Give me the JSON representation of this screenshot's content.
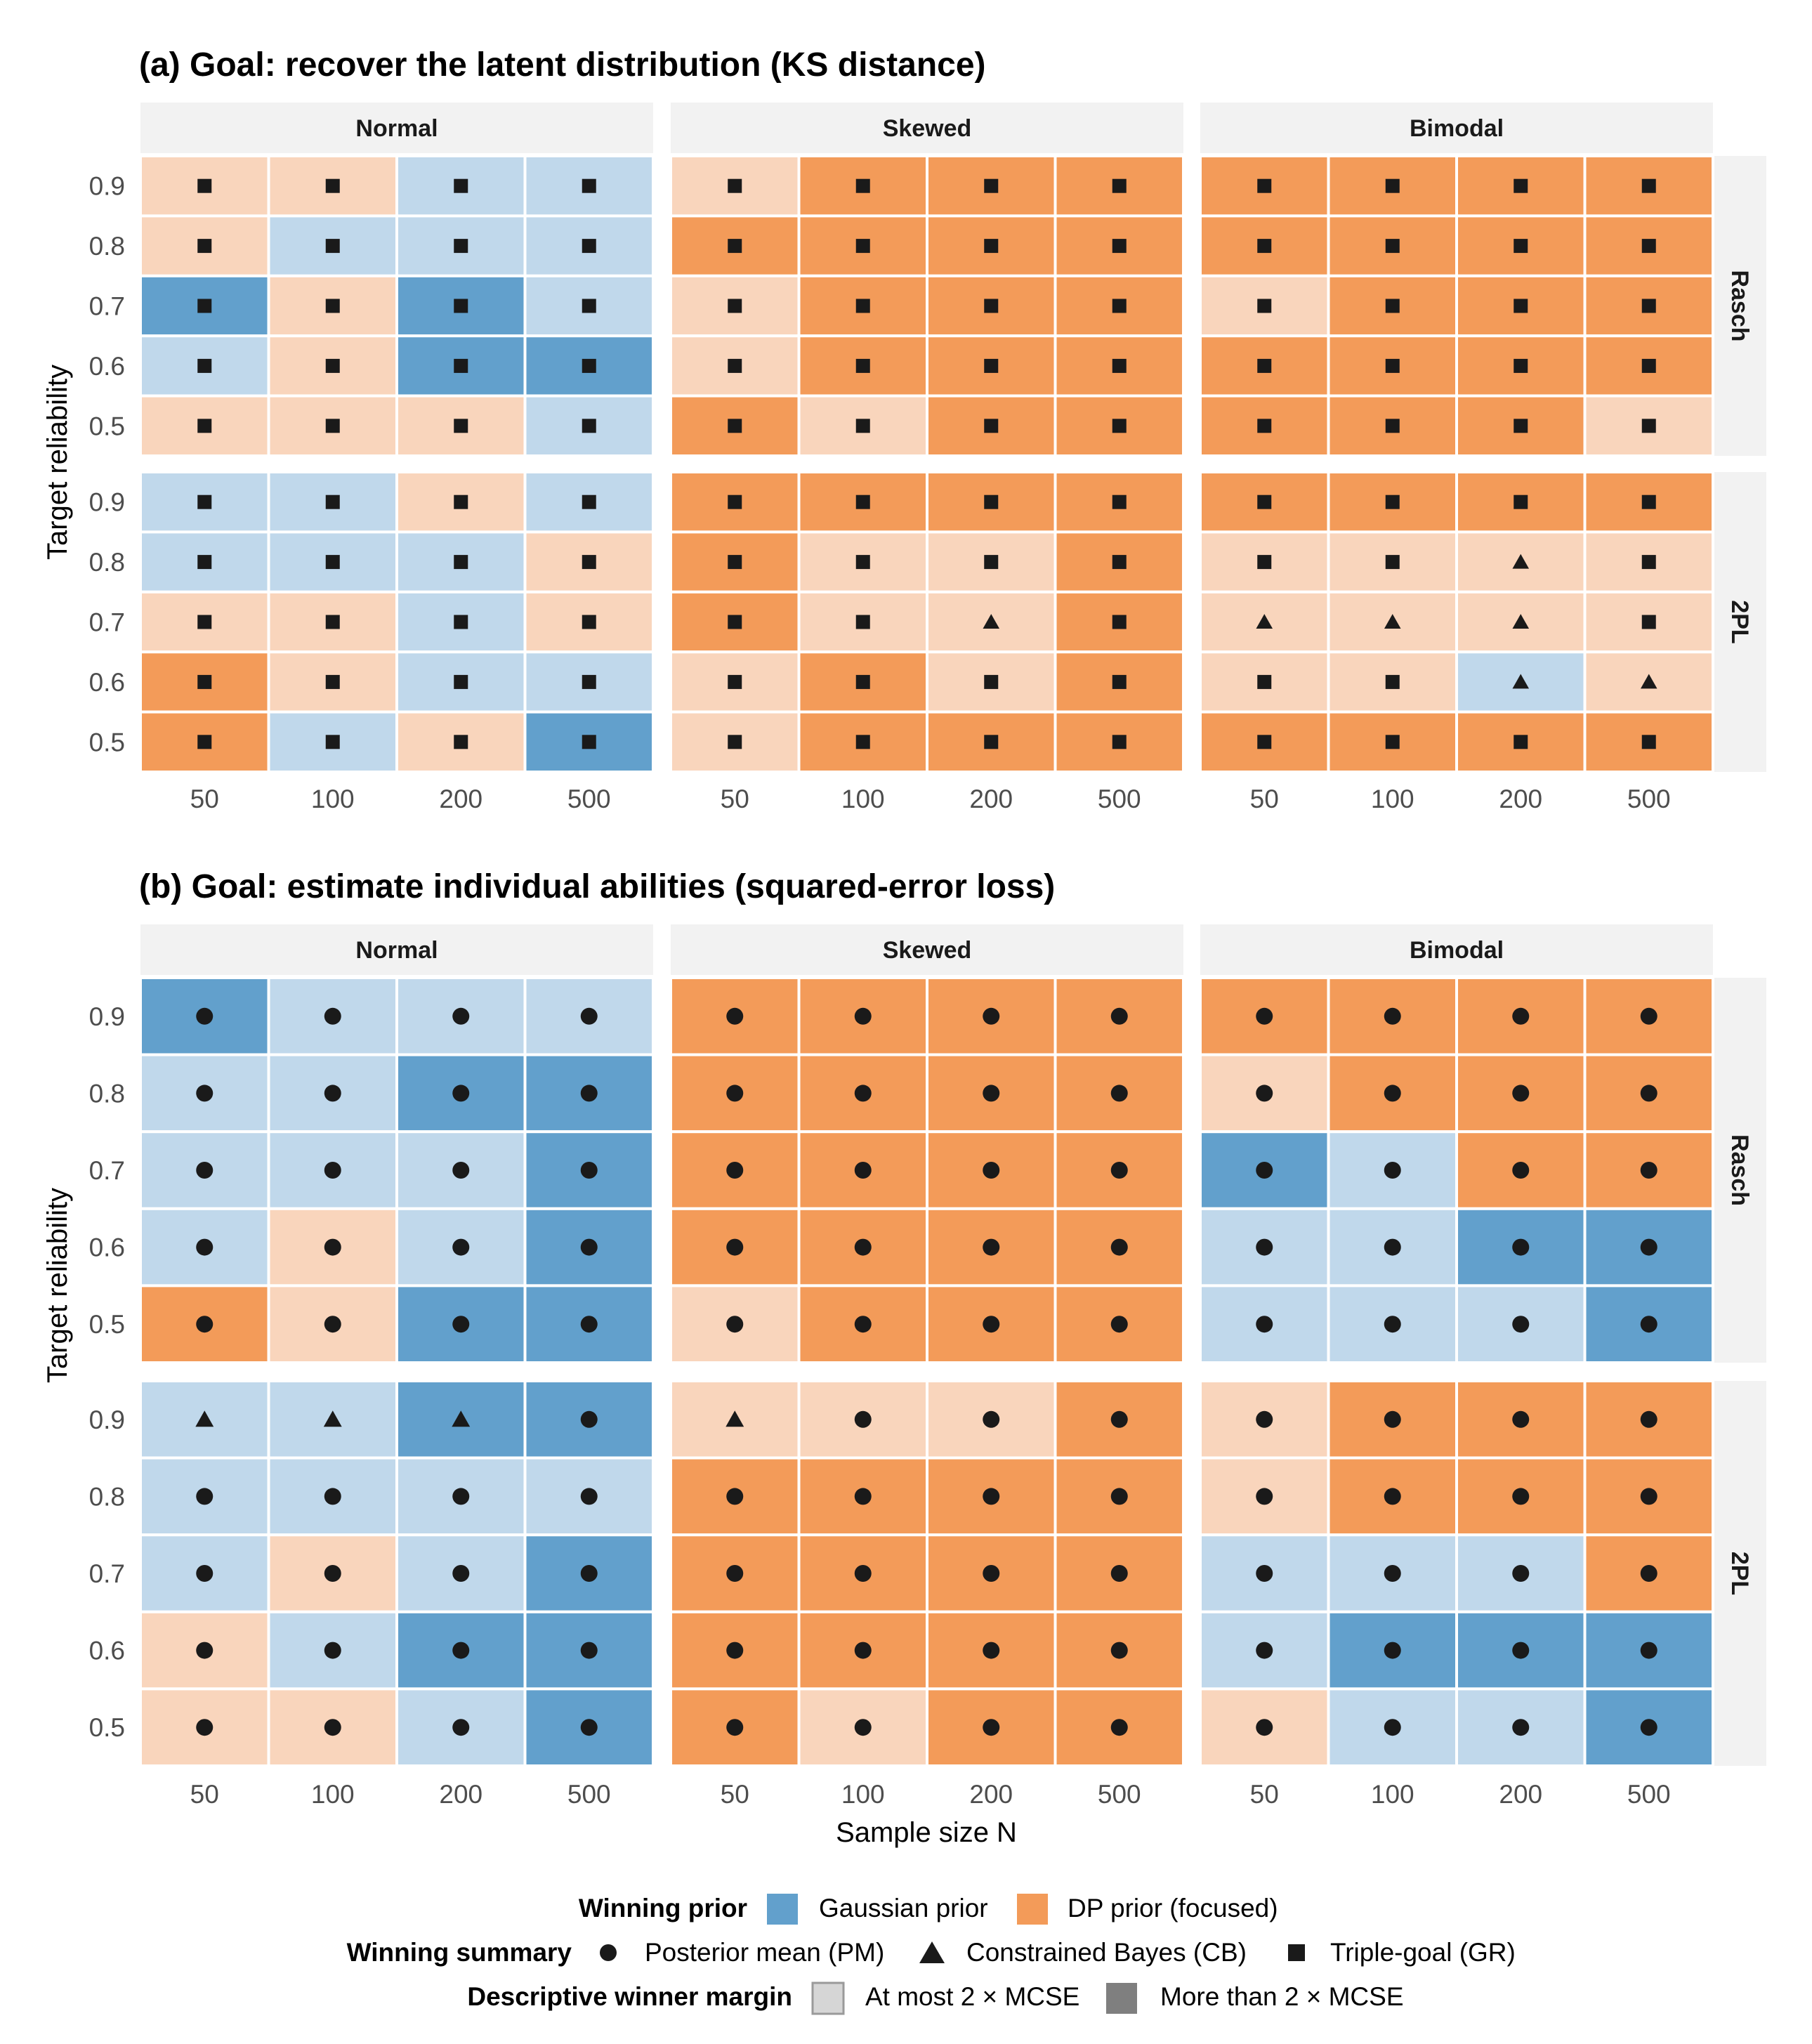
{
  "chart_data": [
    {
      "type": "heatmap",
      "title": "(a) Goal: recover the latent distribution (KS distance)",
      "xlabel": "",
      "ylabel": "Target reliability",
      "x_ticks": [
        "50",
        "100",
        "200",
        "500"
      ],
      "y_ticks": [
        "0.9",
        "0.8",
        "0.7",
        "0.6",
        "0.5"
      ],
      "columns": [
        "Normal",
        "Skewed",
        "Bimodal"
      ],
      "rows": [
        "Rasch",
        "2PL"
      ],
      "cell_encoding": "cells[row][column][reliability 0.9..0.5][N 50..500]: G = Gaussian prior, D = DP prior (focused); lowercase = at most 2 × MCSE, uppercase = more than 2 × MCSE. Marks: M = Posterior mean (PM), C = Constrained Bayes (CB), T = Triple-goal (GR)",
      "cells": [
        [
          [
            [
              "d",
              "T"
            ],
            [
              "d",
              "T"
            ],
            [
              "g",
              "T"
            ],
            [
              "g",
              "T"
            ]
          ],
          [
            [
              "d",
              "T"
            ],
            [
              "g",
              "T"
            ],
            [
              "g",
              "T"
            ],
            [
              "g",
              "T"
            ]
          ],
          [
            [
              "G",
              "T"
            ],
            [
              "d",
              "T"
            ],
            [
              "G",
              "T"
            ],
            [
              "g",
              "T"
            ]
          ],
          [
            [
              "g",
              "T"
            ],
            [
              "d",
              "T"
            ],
            [
              "G",
              "T"
            ],
            [
              "G",
              "T"
            ]
          ],
          [
            [
              "d",
              "T"
            ],
            [
              "d",
              "T"
            ],
            [
              "d",
              "T"
            ],
            [
              "g",
              "T"
            ]
          ]
        ],
        [
          [
            [
              "d",
              "T"
            ],
            [
              "D",
              "T"
            ],
            [
              "D",
              "T"
            ],
            [
              "D",
              "T"
            ]
          ],
          [
            [
              "D",
              "T"
            ],
            [
              "D",
              "T"
            ],
            [
              "D",
              "T"
            ],
            [
              "D",
              "T"
            ]
          ],
          [
            [
              "d",
              "T"
            ],
            [
              "D",
              "T"
            ],
            [
              "D",
              "T"
            ],
            [
              "D",
              "T"
            ]
          ],
          [
            [
              "d",
              "T"
            ],
            [
              "D",
              "T"
            ],
            [
              "D",
              "T"
            ],
            [
              "D",
              "T"
            ]
          ],
          [
            [
              "D",
              "T"
            ],
            [
              "d",
              "T"
            ],
            [
              "D",
              "T"
            ],
            [
              "D",
              "T"
            ]
          ]
        ],
        [
          [
            [
              "D",
              "T"
            ],
            [
              "D",
              "T"
            ],
            [
              "D",
              "T"
            ],
            [
              "D",
              "T"
            ]
          ],
          [
            [
              "D",
              "T"
            ],
            [
              "D",
              "T"
            ],
            [
              "D",
              "T"
            ],
            [
              "D",
              "T"
            ]
          ],
          [
            [
              "d",
              "T"
            ],
            [
              "D",
              "T"
            ],
            [
              "D",
              "T"
            ],
            [
              "D",
              "T"
            ]
          ],
          [
            [
              "D",
              "T"
            ],
            [
              "D",
              "T"
            ],
            [
              "D",
              "T"
            ],
            [
              "D",
              "T"
            ]
          ],
          [
            [
              "D",
              "T"
            ],
            [
              "D",
              "T"
            ],
            [
              "D",
              "T"
            ],
            [
              "d",
              "T"
            ]
          ]
        ]
      ],
      "cells_2pl": [
        [
          [
            [
              "g",
              "T"
            ],
            [
              "g",
              "T"
            ],
            [
              "d",
              "T"
            ],
            [
              "g",
              "T"
            ]
          ],
          [
            [
              "g",
              "T"
            ],
            [
              "g",
              "T"
            ],
            [
              "g",
              "T"
            ],
            [
              "d",
              "T"
            ]
          ],
          [
            [
              "d",
              "T"
            ],
            [
              "d",
              "T"
            ],
            [
              "g",
              "T"
            ],
            [
              "d",
              "T"
            ]
          ],
          [
            [
              "D",
              "T"
            ],
            [
              "d",
              "T"
            ],
            [
              "g",
              "T"
            ],
            [
              "g",
              "T"
            ]
          ],
          [
            [
              "D",
              "T"
            ],
            [
              "g",
              "T"
            ],
            [
              "d",
              "T"
            ],
            [
              "G",
              "T"
            ]
          ]
        ],
        [
          [
            [
              "D",
              "T"
            ],
            [
              "D",
              "T"
            ],
            [
              "D",
              "T"
            ],
            [
              "D",
              "T"
            ]
          ],
          [
            [
              "D",
              "T"
            ],
            [
              "d",
              "T"
            ],
            [
              "d",
              "T"
            ],
            [
              "D",
              "T"
            ]
          ],
          [
            [
              "D",
              "T"
            ],
            [
              "d",
              "T"
            ],
            [
              "d",
              "C"
            ],
            [
              "D",
              "T"
            ]
          ],
          [
            [
              "d",
              "T"
            ],
            [
              "D",
              "T"
            ],
            [
              "d",
              "T"
            ],
            [
              "D",
              "T"
            ]
          ],
          [
            [
              "d",
              "T"
            ],
            [
              "D",
              "T"
            ],
            [
              "D",
              "T"
            ],
            [
              "D",
              "T"
            ]
          ]
        ],
        [
          [
            [
              "D",
              "T"
            ],
            [
              "D",
              "T"
            ],
            [
              "D",
              "T"
            ],
            [
              "D",
              "T"
            ]
          ],
          [
            [
              "d",
              "T"
            ],
            [
              "d",
              "T"
            ],
            [
              "d",
              "C"
            ],
            [
              "d",
              "T"
            ]
          ],
          [
            [
              "d",
              "C"
            ],
            [
              "d",
              "C"
            ],
            [
              "d",
              "C"
            ],
            [
              "d",
              "T"
            ]
          ],
          [
            [
              "d",
              "T"
            ],
            [
              "d",
              "T"
            ],
            [
              "g",
              "C"
            ],
            [
              "d",
              "C"
            ]
          ],
          [
            [
              "D",
              "T"
            ],
            [
              "D",
              "T"
            ],
            [
              "D",
              "T"
            ],
            [
              "D",
              "T"
            ]
          ]
        ]
      ]
    },
    {
      "type": "heatmap",
      "title": "(b) Goal: estimate individual abilities (squared-error loss)",
      "xlabel": "Sample size N",
      "ylabel": "Target reliability",
      "x_ticks": [
        "50",
        "100",
        "200",
        "500"
      ],
      "y_ticks": [
        "0.9",
        "0.8",
        "0.7",
        "0.6",
        "0.5"
      ],
      "columns": [
        "Normal",
        "Skewed",
        "Bimodal"
      ],
      "rows": [
        "Rasch",
        "2PL"
      ],
      "cells": [
        [
          [
            [
              "G",
              "M"
            ],
            [
              "g",
              "M"
            ],
            [
              "g",
              "M"
            ],
            [
              "g",
              "M"
            ]
          ],
          [
            [
              "g",
              "M"
            ],
            [
              "g",
              "M"
            ],
            [
              "G",
              "M"
            ],
            [
              "G",
              "M"
            ]
          ],
          [
            [
              "g",
              "M"
            ],
            [
              "g",
              "M"
            ],
            [
              "g",
              "M"
            ],
            [
              "G",
              "M"
            ]
          ],
          [
            [
              "g",
              "M"
            ],
            [
              "d",
              "M"
            ],
            [
              "g",
              "M"
            ],
            [
              "G",
              "M"
            ]
          ],
          [
            [
              "D",
              "M"
            ],
            [
              "d",
              "M"
            ],
            [
              "G",
              "M"
            ],
            [
              "G",
              "M"
            ]
          ]
        ],
        [
          [
            [
              "D",
              "M"
            ],
            [
              "D",
              "M"
            ],
            [
              "D",
              "M"
            ],
            [
              "D",
              "M"
            ]
          ],
          [
            [
              "D",
              "M"
            ],
            [
              "D",
              "M"
            ],
            [
              "D",
              "M"
            ],
            [
              "D",
              "M"
            ]
          ],
          [
            [
              "D",
              "M"
            ],
            [
              "D",
              "M"
            ],
            [
              "D",
              "M"
            ],
            [
              "D",
              "M"
            ]
          ],
          [
            [
              "D",
              "M"
            ],
            [
              "D",
              "M"
            ],
            [
              "D",
              "M"
            ],
            [
              "D",
              "M"
            ]
          ],
          [
            [
              "d",
              "M"
            ],
            [
              "D",
              "M"
            ],
            [
              "D",
              "M"
            ],
            [
              "D",
              "M"
            ]
          ]
        ],
        [
          [
            [
              "D",
              "M"
            ],
            [
              "D",
              "M"
            ],
            [
              "D",
              "M"
            ],
            [
              "D",
              "M"
            ]
          ],
          [
            [
              "d",
              "M"
            ],
            [
              "D",
              "M"
            ],
            [
              "D",
              "M"
            ],
            [
              "D",
              "M"
            ]
          ],
          [
            [
              "G",
              "M"
            ],
            [
              "g",
              "M"
            ],
            [
              "D",
              "M"
            ],
            [
              "D",
              "M"
            ]
          ],
          [
            [
              "g",
              "M"
            ],
            [
              "g",
              "M"
            ],
            [
              "G",
              "M"
            ],
            [
              "G",
              "M"
            ]
          ],
          [
            [
              "g",
              "M"
            ],
            [
              "g",
              "M"
            ],
            [
              "g",
              "M"
            ],
            [
              "G",
              "M"
            ]
          ]
        ]
      ],
      "cells_2pl": [
        [
          [
            [
              "g",
              "C"
            ],
            [
              "g",
              "C"
            ],
            [
              "G",
              "C"
            ],
            [
              "G",
              "M"
            ]
          ],
          [
            [
              "g",
              "M"
            ],
            [
              "g",
              "M"
            ],
            [
              "g",
              "M"
            ],
            [
              "g",
              "M"
            ]
          ],
          [
            [
              "g",
              "M"
            ],
            [
              "d",
              "M"
            ],
            [
              "g",
              "M"
            ],
            [
              "G",
              "M"
            ]
          ],
          [
            [
              "d",
              "M"
            ],
            [
              "g",
              "M"
            ],
            [
              "G",
              "M"
            ],
            [
              "G",
              "M"
            ]
          ],
          [
            [
              "d",
              "M"
            ],
            [
              "d",
              "M"
            ],
            [
              "g",
              "M"
            ],
            [
              "G",
              "M"
            ]
          ]
        ],
        [
          [
            [
              "d",
              "C"
            ],
            [
              "d",
              "M"
            ],
            [
              "d",
              "M"
            ],
            [
              "D",
              "M"
            ]
          ],
          [
            [
              "D",
              "M"
            ],
            [
              "D",
              "M"
            ],
            [
              "D",
              "M"
            ],
            [
              "D",
              "M"
            ]
          ],
          [
            [
              "D",
              "M"
            ],
            [
              "D",
              "M"
            ],
            [
              "D",
              "M"
            ],
            [
              "D",
              "M"
            ]
          ],
          [
            [
              "D",
              "M"
            ],
            [
              "D",
              "M"
            ],
            [
              "D",
              "M"
            ],
            [
              "D",
              "M"
            ]
          ],
          [
            [
              "D",
              "M"
            ],
            [
              "d",
              "M"
            ],
            [
              "D",
              "M"
            ],
            [
              "D",
              "M"
            ]
          ]
        ],
        [
          [
            [
              "d",
              "M"
            ],
            [
              "D",
              "M"
            ],
            [
              "D",
              "M"
            ],
            [
              "D",
              "M"
            ]
          ],
          [
            [
              "d",
              "M"
            ],
            [
              "D",
              "M"
            ],
            [
              "D",
              "M"
            ],
            [
              "D",
              "M"
            ]
          ],
          [
            [
              "g",
              "M"
            ],
            [
              "g",
              "M"
            ],
            [
              "g",
              "M"
            ],
            [
              "D",
              "M"
            ]
          ],
          [
            [
              "g",
              "M"
            ],
            [
              "G",
              "M"
            ],
            [
              "G",
              "M"
            ],
            [
              "G",
              "M"
            ]
          ],
          [
            [
              "d",
              "M"
            ],
            [
              "g",
              "M"
            ],
            [
              "g",
              "M"
            ],
            [
              "G",
              "M"
            ]
          ]
        ]
      ]
    }
  ],
  "colors": {
    "gaussian_strong": "#62a0cc",
    "gaussian_light": "#c0d8eb",
    "dp_strong": "#f39b59",
    "dp_light": "#f9d5bc",
    "strip": "#f2f2f2",
    "mark": "#1a1a1a"
  },
  "legend": {
    "prior_title": "Winning prior",
    "prior_gaussian": "Gaussian prior",
    "prior_dp": "DP prior (focused)",
    "summary_title": "Winning summary",
    "summary_pm": "Posterior mean (PM)",
    "summary_cb": "Constrained Bayes (CB)",
    "summary_gr": "Triple-goal (GR)",
    "margin_title": "Descriptive winner margin",
    "margin_low": "At most 2 × MCSE",
    "margin_high": "More than 2 × MCSE"
  }
}
